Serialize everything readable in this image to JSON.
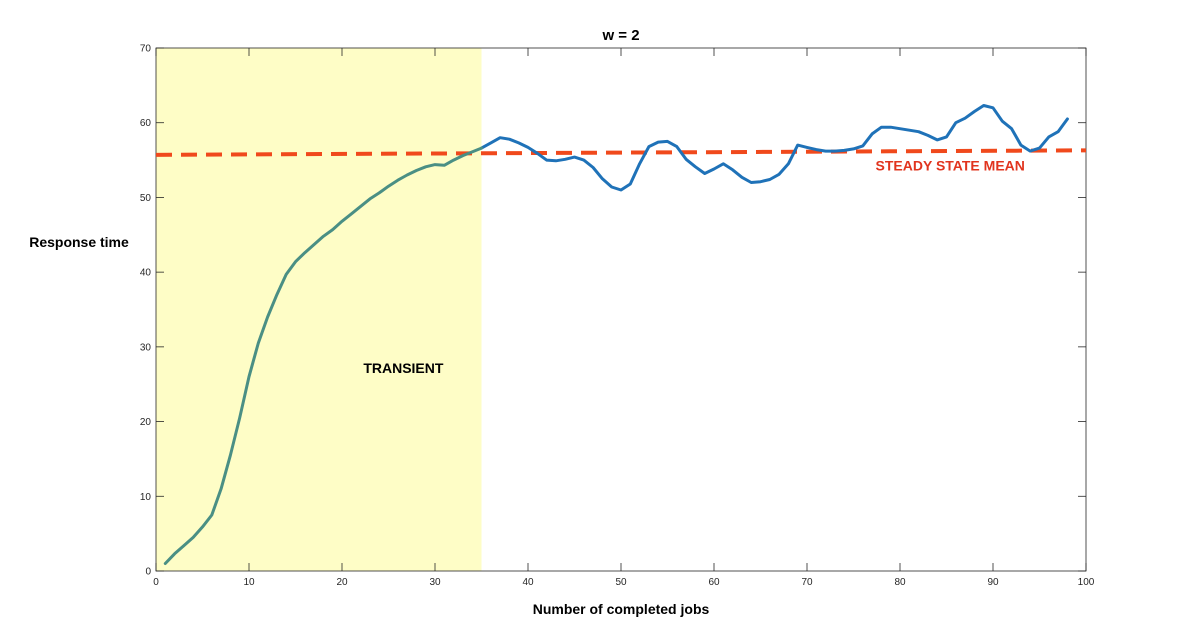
{
  "chart_data": {
    "type": "line",
    "title": "w = 2",
    "xlabel": "Number of completed jobs",
    "ylabel": "Response time",
    "xlim": [
      0,
      100
    ],
    "ylim": [
      0,
      70
    ],
    "xticks": [
      0,
      10,
      20,
      30,
      40,
      50,
      60,
      70,
      80,
      90,
      100
    ],
    "yticks": [
      0,
      10,
      20,
      30,
      40,
      50,
      60,
      70
    ],
    "grid": false,
    "transient_region": {
      "x_start": 0,
      "x_end": 35,
      "label": "TRANSIENT",
      "color": "#fefdc6"
    },
    "steady_state_mean": {
      "label": "STEADY STATE MEAN",
      "x": [
        0,
        100
      ],
      "y": [
        55.7,
        56.3
      ],
      "style": "dashed",
      "color": "#f0491c"
    },
    "series": [
      {
        "color": "#1f72b8",
        "transient_color": "#4a8f84",
        "x": [
          1,
          2,
          3,
          4,
          5,
          6,
          7,
          8,
          9,
          10,
          11,
          12,
          13,
          14,
          15,
          16,
          17,
          18,
          19,
          20,
          21,
          22,
          23,
          24,
          25,
          26,
          27,
          28,
          29,
          30,
          31,
          32,
          33,
          34,
          35,
          36,
          37,
          38,
          39,
          40,
          41,
          42,
          43,
          44,
          45,
          46,
          47,
          48,
          49,
          50,
          51,
          52,
          53,
          54,
          55,
          56,
          57,
          58,
          59,
          60,
          61,
          62,
          63,
          64,
          65,
          66,
          67,
          68,
          69,
          70,
          71,
          72,
          73,
          74,
          75,
          76,
          77,
          78,
          79,
          80,
          81,
          82,
          83,
          84,
          85,
          86,
          87,
          88,
          89,
          90,
          91,
          92,
          93,
          94,
          95,
          96,
          97,
          98
        ],
        "y": [
          1,
          2.3,
          3.4,
          4.5,
          5.9,
          7.5,
          11,
          15.5,
          20.5,
          26,
          30.5,
          34,
          37,
          39.7,
          41.4,
          42.6,
          43.7,
          44.8,
          45.7,
          46.8,
          47.8,
          48.8,
          49.8,
          50.6,
          51.5,
          52.3,
          53,
          53.6,
          54.1,
          54.4,
          54.3,
          55,
          55.6,
          56.1,
          56.6,
          57.3,
          58,
          57.8,
          57.3,
          56.7,
          55.9,
          55,
          54.9,
          55.1,
          55.4,
          55,
          54,
          52.5,
          51.4,
          51,
          51.8,
          54.5,
          56.8,
          57.4,
          57.5,
          56.8,
          55.1,
          54.1,
          53.2,
          53.8,
          54.5,
          53.7,
          52.7,
          52,
          52.1,
          52.4,
          53.1,
          54.5,
          57,
          56.7,
          56.4,
          56.2,
          56.2,
          56.3,
          56.5,
          56.9,
          58.5,
          59.4,
          59.4,
          59.2,
          59,
          58.8,
          58.3,
          57.7,
          58.1,
          60,
          60.6,
          61.5,
          62.3,
          62,
          60.2,
          59.2,
          57,
          56.2,
          56.6,
          58.1,
          58.8,
          60.5
        ]
      }
    ]
  }
}
